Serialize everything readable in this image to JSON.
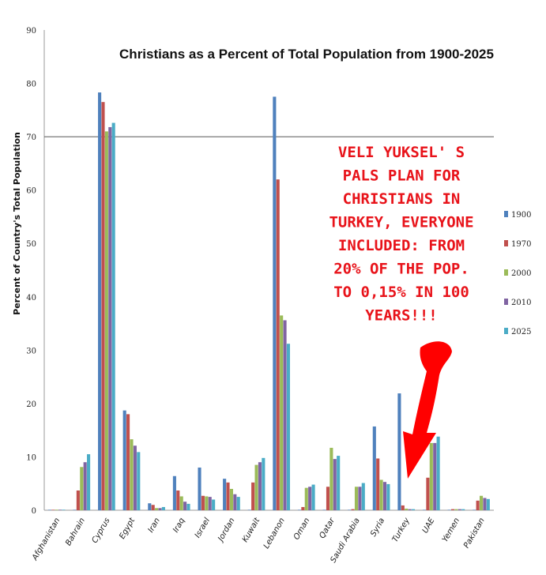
{
  "chart_data": {
    "type": "bar",
    "title": "Christians as a Percent of Total Population from 1900-2025",
    "ylabel": "Percent of Country's Total Population",
    "xlabel": "",
    "ylim": [
      0,
      90
    ],
    "yticks": [
      0,
      10,
      20,
      30,
      40,
      50,
      60,
      70,
      80,
      90
    ],
    "reference_line": 70,
    "legend_position": "right",
    "categories": [
      "Afghanistan",
      "Bahrain",
      "Cyprus",
      "Egypt",
      "Iran",
      "Iraq",
      "Israel",
      "Jordan",
      "Kuwait",
      "Lebanon",
      "Oman",
      "Qatar",
      "Saudi Arabia",
      "Syria",
      "Turkey",
      "UAE",
      "Yemen",
      "Pakistan"
    ],
    "series": [
      {
        "name": "1900",
        "color": "#4f81bd",
        "values": [
          0,
          0,
          78.3,
          18.7,
          1.3,
          6.4,
          8.0,
          5.9,
          0,
          77.5,
          0,
          0,
          0,
          15.7,
          21.9,
          0,
          0,
          0
        ]
      },
      {
        "name": "1970",
        "color": "#c0504d",
        "values": [
          0,
          3.7,
          76.5,
          18.0,
          1.0,
          3.7,
          2.7,
          5.2,
          5.2,
          62.0,
          0.6,
          4.4,
          0.2,
          9.7,
          0.9,
          6.1,
          0.2,
          1.8
        ]
      },
      {
        "name": "2000",
        "color": "#9bbb59",
        "values": [
          0.1,
          8.1,
          71.0,
          13.3,
          0.4,
          2.6,
          2.6,
          4.0,
          8.5,
          36.5,
          4.2,
          11.7,
          4.4,
          5.7,
          0.3,
          12.6,
          0.2,
          2.7
        ]
      },
      {
        "name": "2010",
        "color": "#8064a2",
        "values": [
          0.1,
          9.0,
          71.8,
          12.1,
          0.4,
          1.6,
          2.5,
          3.0,
          9.0,
          35.6,
          4.4,
          9.6,
          4.4,
          5.3,
          0.2,
          12.6,
          0.2,
          2.3
        ]
      },
      {
        "name": "2025",
        "color": "#4bacc6",
        "values": [
          0.1,
          10.5,
          72.6,
          10.9,
          0.6,
          1.2,
          2.0,
          2.5,
          9.8,
          31.2,
          4.8,
          10.2,
          5.1,
          4.9,
          0.2,
          13.8,
          0.2,
          2.1
        ]
      }
    ],
    "annotation": {
      "lines": [
        "VELI YUKSEL' S",
        "PALS PLAN FOR",
        "CHRISTIANS IN",
        "TURKEY, EVERYONE",
        "INCLUDED: FROM",
        "20% OF THE POP.",
        "TO 0,15% IN 100",
        "YEARS!!!"
      ],
      "color": "#e8131a",
      "arrow_color": "#ff0000",
      "arrow_target": "Turkey"
    }
  }
}
